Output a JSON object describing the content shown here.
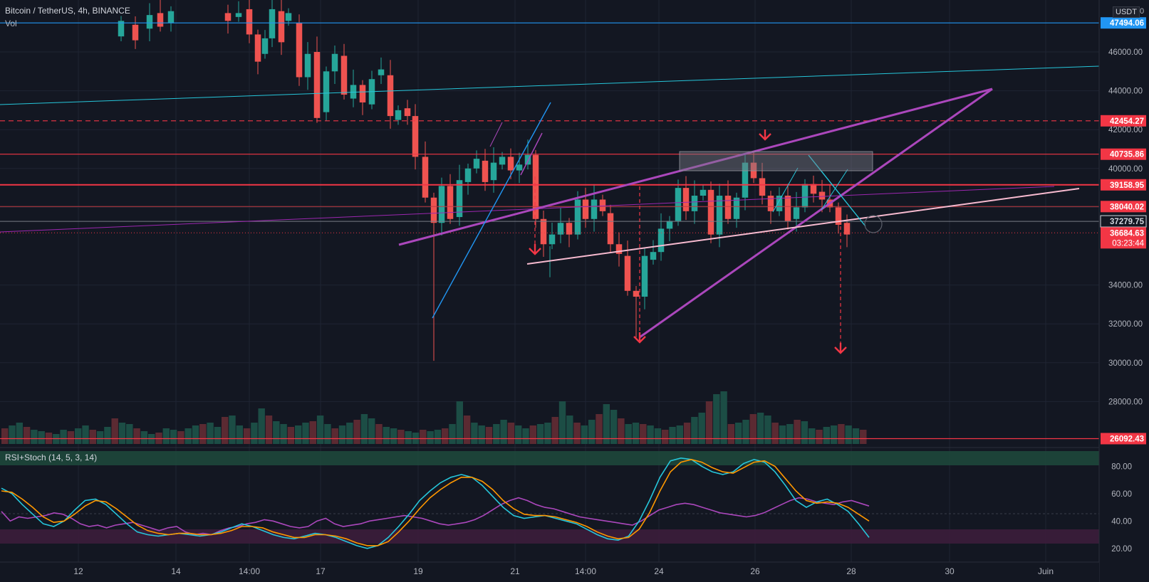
{
  "header": {
    "symbol_line": "Bitcoin / TetherUS, 4h, BINANCE",
    "vol_label": "Vol",
    "currency": "USDT",
    "currency_suffix": "0"
  },
  "chart_data": [
    {
      "type": "candlestick",
      "title": "Bitcoin / TetherUS, 4h, BINANCE",
      "y_ticks": [
        "46000.00",
        "44000.00",
        "42000.00",
        "40000.00",
        "38000.00",
        "34000.00",
        "32000.00",
        "30000.00",
        "28000.00"
      ],
      "x_ticks": [
        "12",
        "14",
        "14:00",
        "17",
        "19",
        "21",
        "14:00",
        "24",
        "26",
        "28",
        "30",
        "Juin"
      ],
      "ylim": [
        26000,
        48200
      ],
      "price_tags": [
        {
          "value": 47494.06,
          "label": "47494.06",
          "color": "#2196f3"
        },
        {
          "value": 42454.27,
          "label": "42454.27",
          "color": "#f23645"
        },
        {
          "value": 40735.86,
          "label": "40735.86",
          "color": "#f23645"
        },
        {
          "value": 39158.95,
          "label": "39158.95",
          "color": "#f23645"
        },
        {
          "value": 38040.02,
          "label": "38040.02",
          "color": "#f23645"
        },
        {
          "value": 37279.75,
          "label": "37279.75",
          "color": "#d1d4dc"
        },
        {
          "value": 36684.63,
          "label": "36684.63",
          "color": "#f23645",
          "sub": "03:23:44"
        },
        {
          "value": 26092.43,
          "label": "26092.43",
          "color": "#f23645"
        }
      ],
      "volume": {
        "series_name": "Vol"
      }
    },
    {
      "type": "line",
      "indicator": "RSI+Stoch (14, 5, 3, 14)",
      "y_ticks": [
        "80.00",
        "60.00",
        "40.00",
        "20.00"
      ],
      "ylim": [
        12,
        88
      ],
      "series": [
        {
          "name": "RSI",
          "color": "#ab47bc",
          "values": [
            47,
            40,
            43,
            42,
            43,
            44,
            46,
            45,
            42,
            38,
            36,
            37,
            35,
            37,
            38,
            39,
            37,
            35,
            33,
            35,
            36,
            32,
            30,
            31,
            30,
            33,
            35,
            36,
            38,
            39,
            41,
            40,
            38,
            36,
            35,
            36,
            40,
            42,
            38,
            36,
            37,
            38,
            40,
            41,
            42,
            43,
            44,
            43,
            42,
            40,
            38,
            37,
            38,
            39,
            41,
            44,
            48,
            52,
            55,
            57,
            55,
            52,
            50,
            49,
            47,
            45,
            43,
            42,
            41,
            40,
            39,
            38,
            37,
            40,
            44,
            48,
            50,
            52,
            53,
            52,
            50,
            48,
            46,
            45,
            44,
            43,
            44,
            46,
            49,
            52,
            55,
            57,
            56,
            54,
            53,
            52,
            54,
            55,
            53,
            51
          ]
        },
        {
          "name": "Stoch %K",
          "color": "#26c6da",
          "values": [
            64,
            60,
            52,
            45,
            38,
            36,
            40,
            48,
            55,
            56,
            52,
            45,
            38,
            32,
            30,
            29,
            30,
            31,
            30,
            29,
            30,
            32,
            35,
            38,
            36,
            33,
            30,
            28,
            27,
            29,
            31,
            30,
            28,
            25,
            22,
            20,
            22,
            28,
            36,
            45,
            55,
            62,
            68,
            72,
            74,
            72,
            66,
            58,
            50,
            44,
            42,
            43,
            44,
            42,
            40,
            38,
            34,
            30,
            27,
            26,
            29,
            40,
            55,
            72,
            84,
            86,
            85,
            80,
            76,
            74,
            76,
            82,
            85,
            83,
            76,
            66,
            55,
            50,
            54,
            56,
            52,
            47,
            38,
            28
          ]
        },
        {
          "name": "Stoch %D",
          "color": "#ff9800",
          "values": [
            62,
            61,
            56,
            50,
            43,
            39,
            40,
            45,
            51,
            55,
            54,
            49,
            43,
            37,
            33,
            31,
            30,
            31,
            31,
            30,
            30,
            31,
            33,
            36,
            36,
            35,
            32,
            30,
            28,
            28,
            30,
            30,
            29,
            27,
            24,
            22,
            22,
            25,
            32,
            40,
            49,
            57,
            63,
            68,
            72,
            72,
            69,
            63,
            55,
            49,
            45,
            44,
            44,
            43,
            41,
            39,
            36,
            32,
            29,
            27,
            28,
            34,
            46,
            62,
            76,
            83,
            85,
            83,
            79,
            76,
            75,
            79,
            83,
            84,
            80,
            71,
            62,
            55,
            53,
            54,
            53,
            50,
            45,
            40
          ]
        }
      ]
    }
  ],
  "time_axis_labels": [
    "12",
    "14",
    "14:00",
    "17",
    "19",
    "21",
    "14:00",
    "24",
    "26",
    "28",
    "30",
    "Juin"
  ]
}
